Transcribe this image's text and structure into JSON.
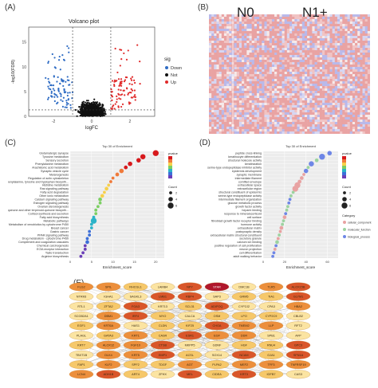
{
  "panel_labels": {
    "a": "(A)",
    "b": "(B)",
    "c": "(C)",
    "d": "(D)",
    "e": "(E)"
  },
  "chart_data": [
    {
      "id": "volcano",
      "type": "scatter",
      "title": "Volcano plot",
      "xlabel": "logFC",
      "ylabel": "-log10(FDR)",
      "xlim": [
        -3.3,
        3.3
      ],
      "ylim": [
        0,
        18
      ],
      "x_ticks": [
        -2,
        0,
        2
      ],
      "y_ticks": [
        0,
        5,
        10,
        15
      ],
      "legend_title": "sig",
      "legend_position": "right",
      "series": [
        {
          "name": "Down",
          "color": "#2f6cc4"
        },
        {
          "name": "Not",
          "color": "#111111"
        },
        {
          "name": "Up",
          "color": "#e02a2a"
        }
      ],
      "threshold_logfc": [
        -1,
        1
      ],
      "threshold_y": 1.3
    },
    {
      "id": "heatmap",
      "type": "heatmap",
      "groups": [
        "N0",
        "N1+"
      ]
    },
    {
      "id": "kegg",
      "type": "scatter",
      "title": "Top 30 of Enrichment",
      "xlabel": "Enrichment_score",
      "x_ticks": [
        0,
        5,
        10,
        15,
        20
      ],
      "xlim": [
        0,
        22
      ],
      "color_legend_title": "pvalue",
      "size_legend_title": "Count",
      "size_legend_values": [
        "2",
        "4",
        "6"
      ],
      "categories": [
        "Glutamatergic synapse",
        "Tyrosine metabolism",
        "Sensory secretion",
        "Phenylalanine metabolism",
        "Arachidonic acid metabolism",
        "Synaptic vesicle cycle",
        "Melanogenesis",
        "Regulation of actin cytoskeleton",
        "Phenylalanine, tyrosine and tryptophan biosynth...",
        "Histidine metabolism",
        "Ras signaling pathway",
        "Fatty acid degradation",
        "Other ionic metabolism",
        "Calcium signaling pathway",
        "Estrogen signaling pathway",
        "Ovarian steroidogenesis",
        "Ubiquinone and other terpenoid-quinone biosynth...",
        "Cortisol synthesis and secretion",
        "Fatty acid biosynthesis",
        "Metabolic pathways",
        "Metabolism of xenobiotics by cytochrome P450",
        "Breast cancer",
        "Gastric cancer",
        "PPAR signaling pathway",
        "Drug metabolism - cytochrome P450",
        "Complement and coagulation cascades",
        "Chemical carcinogenesis",
        "ECM-receptor interaction",
        "Taste transduction",
        "Arginine biosynthesis"
      ],
      "values": [
        20,
        17,
        16,
        14,
        13,
        12,
        11,
        10,
        9.5,
        9,
        8.5,
        8,
        7.5,
        7,
        7,
        6.5,
        6,
        6,
        5.5,
        5.5,
        5,
        5,
        4.5,
        4.5,
        4,
        4,
        3.5,
        3.5,
        3,
        2.5
      ],
      "counts": [
        6,
        5,
        4,
        4,
        3,
        4,
        3,
        2,
        2,
        2,
        3,
        2,
        3,
        3,
        2,
        2,
        2,
        2,
        2,
        6,
        2,
        2,
        2,
        2,
        2,
        3,
        2,
        2,
        2,
        2
      ]
    },
    {
      "id": "go",
      "type": "scatter",
      "title": "Top 30 of Enrichment",
      "xlabel": "Enrichment_score",
      "x_ticks": [
        0,
        20,
        40,
        60
      ],
      "xlim": [
        0,
        70
      ],
      "color_legend_title": "pvalue",
      "size_legend_title": "Count",
      "size_legend_values": [
        "2",
        "4",
        "6"
      ],
      "category_legend_title": "Category",
      "category_legend_entries": [
        "cellular_component",
        "molecular_function",
        "biological_process"
      ],
      "categories": [
        "peptide cross-linking",
        "keratinocyte differentiation",
        "structural molecule activity",
        "keratinization",
        "serine-type endopeptidase inhibitor activity",
        "epidermis development",
        "synaptic membrane",
        "intermediate filament",
        "cornified envelope",
        "extracellular space",
        "extracellular region",
        "structural constituent of epidermis",
        "serine-type endopeptidase activity",
        "intermediate filament organization",
        "glucose metabolic process",
        "growth factor activity",
        "heparin binding",
        "response to mineralocorticoid",
        "cell surface",
        "fibroblast growth factor receptor binding",
        "hormone activity",
        "extracellular matrix",
        "postsynaptic density",
        "extracellular matrix structural constituent",
        "secretory granule",
        "calcium ion binding",
        "positive regulation of cell proliferation",
        "neuron projection",
        "cell differentiation",
        "adult walking behavior"
      ],
      "values": [
        62,
        55,
        50,
        45,
        42,
        40,
        38,
        36,
        34,
        32,
        30,
        28,
        26,
        25,
        24,
        23,
        22,
        21,
        20,
        19,
        18,
        17,
        16,
        15,
        14,
        13,
        12,
        11,
        10,
        9
      ],
      "counts": [
        4,
        6,
        3,
        5,
        2,
        4,
        2,
        3,
        3,
        6,
        6,
        2,
        2,
        2,
        2,
        2,
        2,
        2,
        3,
        2,
        2,
        3,
        2,
        2,
        2,
        3,
        2,
        2,
        2,
        2
      ],
      "category_index": [
        2,
        2,
        1,
        2,
        1,
        2,
        0,
        0,
        0,
        0,
        0,
        1,
        1,
        2,
        2,
        1,
        1,
        2,
        0,
        1,
        1,
        0,
        0,
        1,
        0,
        1,
        2,
        0,
        2,
        2
      ]
    }
  ],
  "network": {
    "nodes": [
      [
        "FLG2",
        "SPIL",
        "RHCGL1",
        "LAMB4",
        "NPY",
        "STAR",
        "DMC1B",
        "TLR5",
        "ALOX15B"
      ],
      [
        "NTRK6",
        "IGHA1",
        "SAGKL3",
        "LMB1",
        "RBP4",
        "SAP3",
        "GRM5",
        "TIA1",
        "GLYM1"
      ],
      [
        "RTL1",
        "ZFTA2",
        "FGA3",
        "KRT13",
        "SCL31",
        "ADIPOQ",
        "CYP2J2",
        "CPA3",
        "HBA2"
      ],
      [
        "SCGB2A1",
        "DBM1",
        "IRF4",
        "MYO",
        "CALCA",
        "OSM",
        "LPO",
        "CYP2C9",
        "CBLB2"
      ],
      [
        "EGF1",
        "KRT6A",
        "HAS1",
        "CLDN",
        "KIF25",
        "CHGA",
        "TMEM2",
        "LLP",
        "RFT2"
      ],
      [
        "PLAGL",
        "GATA3",
        "KRT1",
        "CASR",
        "ESR1",
        "EGF",
        "DDR",
        "SPB1",
        "AFP"
      ],
      [
        "KRT7",
        "ALOX12",
        "FGF10",
        "CTSB",
        "MKPP5",
        "GDNF",
        "HGF",
        "RNU4",
        "GPC3"
      ],
      [
        "TBXT1B",
        "DLK4",
        "KRT5",
        "EMP1",
        "ACSL",
        "SOX14",
        "NCAM",
        "GJA1",
        "SFN1A"
      ],
      [
        "FAP1",
        "KLF2",
        "SPF2",
        "TDGF",
        "AGT",
        "PLPA2",
        "MEF2",
        "TFF3",
        "TNFRSF19"
      ],
      [
        "LCN4",
        "ADH1B",
        "ART4",
        "ZFHX",
        "MEL",
        "CIDEA",
        "KRT3",
        "IGFB7",
        "CAS3"
      ]
    ],
    "colors": {
      "hub": "#b0172c",
      "dark": "#d9562a",
      "mid": "#ec8f3c",
      "light": "#f6c86a",
      "pale": "#fbe4a2",
      "edge": "#8a8a8a"
    }
  }
}
